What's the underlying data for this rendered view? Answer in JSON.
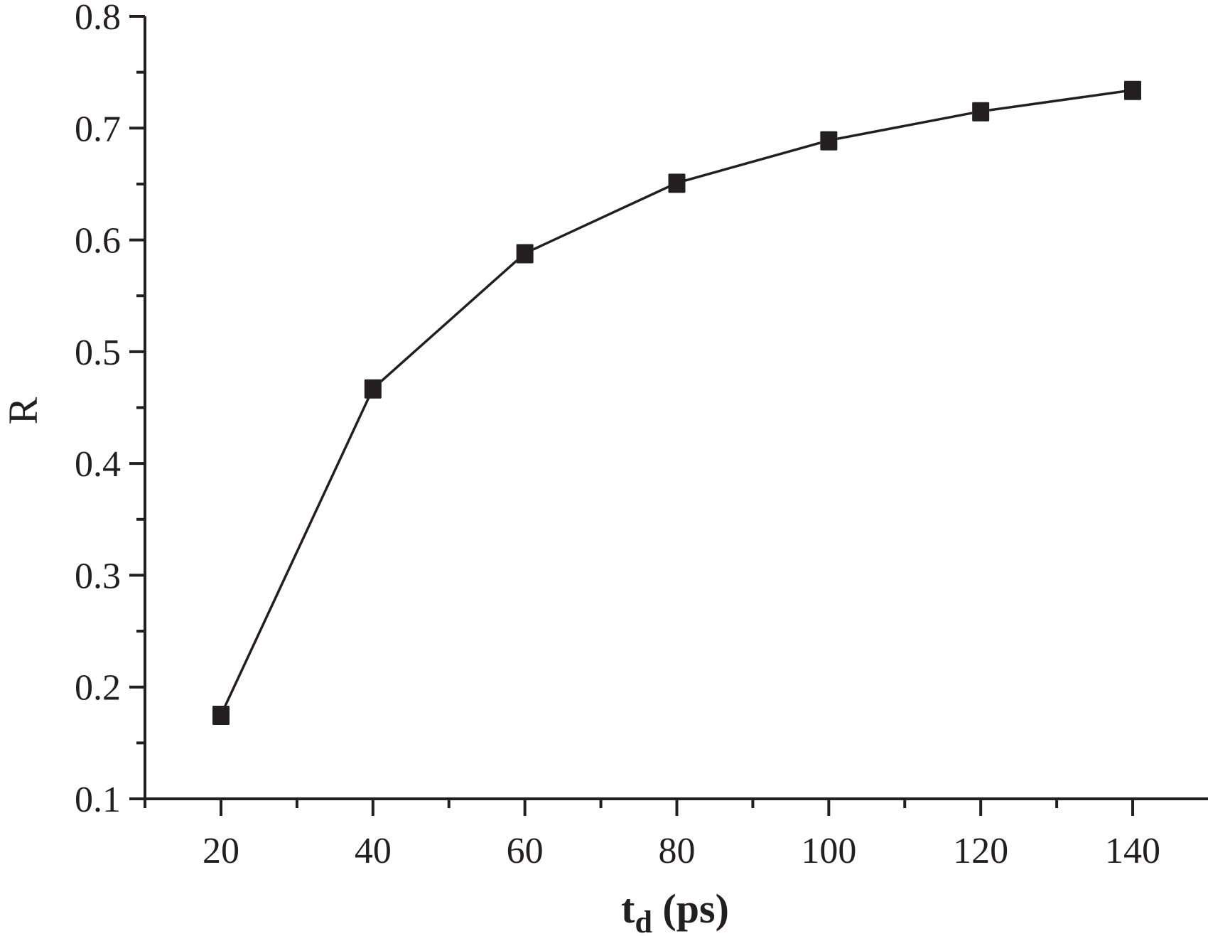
{
  "chart_data": {
    "type": "line",
    "title": "",
    "xlabel": "t_d (ps)",
    "xlabel_parts": {
      "main": "t",
      "sub": "d",
      "rest": " (ps)"
    },
    "ylabel": "R",
    "x": [
      20,
      40,
      60,
      80,
      100,
      120,
      140
    ],
    "series": [
      {
        "name": "R",
        "marker": "filled-square",
        "color": "#231f20",
        "values": [
          0.175,
          0.467,
          0.588,
          0.651,
          0.689,
          0.715,
          0.734
        ]
      }
    ],
    "xlim": [
      13.6,
      156
    ],
    "ylim": [
      0.1,
      0.8
    ],
    "xticks": [
      20,
      40,
      60,
      80,
      100,
      120,
      140
    ],
    "xtick_labels": [
      "20",
      "40",
      "60",
      "80",
      "100",
      "120",
      "140"
    ],
    "xminor_step": 10,
    "yticks": [
      0.1,
      0.2,
      0.3,
      0.4,
      0.5,
      0.6,
      0.7,
      0.8
    ],
    "ytick_labels": [
      "0.1",
      "0.2",
      "0.3",
      "0.4",
      "0.5",
      "0.6",
      "0.7",
      "0.8"
    ],
    "yminor_step": 0.05,
    "grid": false,
    "legend": null
  },
  "colors": {
    "ink": "#231f20",
    "background": "#ffffff"
  }
}
